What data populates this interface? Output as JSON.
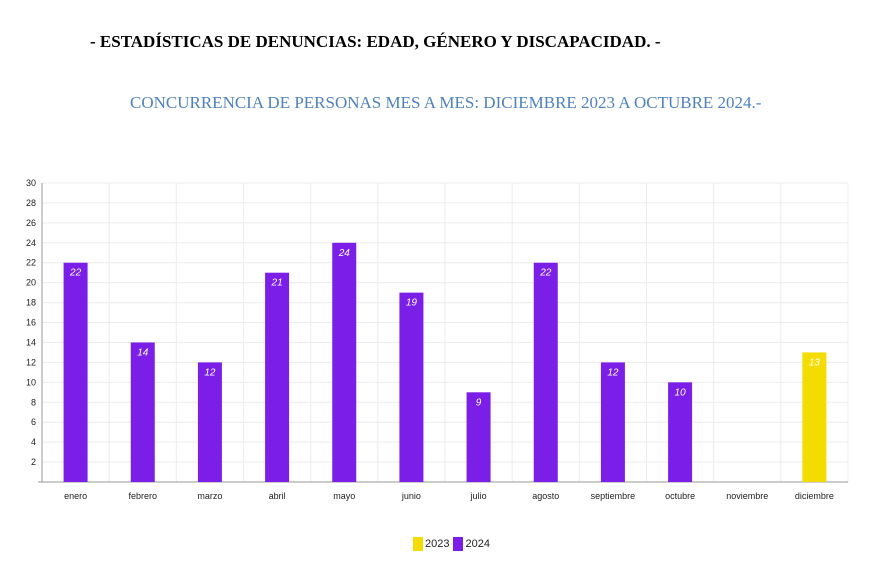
{
  "title": "- ESTADÍSTICAS DE DENUNCIAS: EDAD, GÉNERO Y DISCAPACIDAD. -",
  "subtitle": "CONCURRENCIA DE PERSONAS MES A MES: DICIEMBRE 2023 A OCTUBRE 2024.-",
  "chart_data": {
    "type": "bar",
    "title": "",
    "xlabel": "",
    "ylabel": "",
    "ylim": [
      0,
      30
    ],
    "yticks": [
      2,
      4,
      6,
      8,
      10,
      12,
      14,
      16,
      18,
      20,
      22,
      24,
      26,
      28,
      30
    ],
    "grid": true,
    "legend_position": "bottom",
    "categories": [
      "enero",
      "febrero",
      "marzo",
      "abril",
      "mayo",
      "junio",
      "julio",
      "agosto",
      "septiembre",
      "octubre",
      "noviembre",
      "diciembre"
    ],
    "series": [
      {
        "name": "2023",
        "color": "#f5dc00",
        "values": [
          null,
          null,
          null,
          null,
          null,
          null,
          null,
          null,
          null,
          null,
          null,
          13
        ]
      },
      {
        "name": "2024",
        "color": "#7b1fe8",
        "values": [
          22,
          14,
          12,
          21,
          24,
          19,
          9,
          22,
          12,
          10,
          null,
          null
        ]
      }
    ]
  }
}
